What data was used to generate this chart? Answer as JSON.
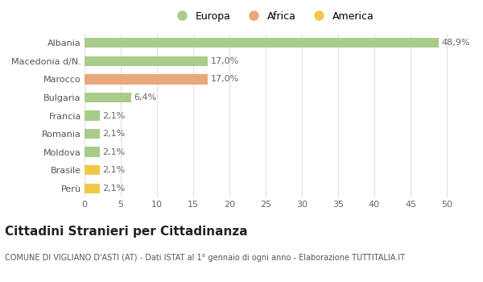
{
  "categories": [
    "Perù",
    "Brasile",
    "Moldova",
    "Romania",
    "Francia",
    "Bulgaria",
    "Marocco",
    "Macedonia d/N.",
    "Albania"
  ],
  "values": [
    2.1,
    2.1,
    2.1,
    2.1,
    2.1,
    6.4,
    17.0,
    17.0,
    48.9
  ],
  "labels": [
    "2,1%",
    "2,1%",
    "2,1%",
    "2,1%",
    "2,1%",
    "6,4%",
    "17,0%",
    "17,0%",
    "48,9%"
  ],
  "colors": [
    "#f0c84a",
    "#f0c84a",
    "#a8cc8a",
    "#a8cc8a",
    "#a8cc8a",
    "#a8cc8a",
    "#e8a87c",
    "#a8cc8a",
    "#a8cc8a"
  ],
  "legend": [
    {
      "label": "Europa",
      "color": "#a8cc8a"
    },
    {
      "label": "Africa",
      "color": "#e8a87c"
    },
    {
      "label": "America",
      "color": "#f0c84a"
    }
  ],
  "title": "Cittadini Stranieri per Cittadinanza",
  "subtitle": "COMUNE DI VIGLIANO D'ASTI (AT) - Dati ISTAT al 1° gennaio di ogni anno - Elaborazione TUTTITALIA.IT",
  "xlim": [
    0,
    52
  ],
  "xticks": [
    0,
    5,
    10,
    15,
    20,
    25,
    30,
    35,
    40,
    45,
    50
  ],
  "background_color": "#ffffff",
  "grid_color": "#e0e0e0",
  "bar_height": 0.55,
  "label_fontsize": 8,
  "title_fontsize": 11,
  "subtitle_fontsize": 7,
  "tick_label_fontsize": 8,
  "legend_fontsize": 9
}
